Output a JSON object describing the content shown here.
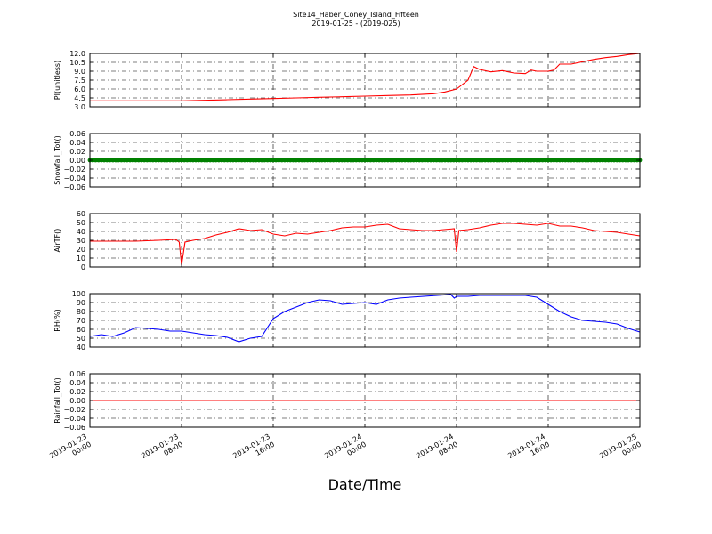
{
  "figure": {
    "title_line1": "Site14_Haber_Coney_Island_Fifteen",
    "title_line2": "2019-01-25 - (2019-025)",
    "xlabel": "Date/Time"
  },
  "chart_data": [
    {
      "type": "line",
      "ylabel": "PI(unitless)",
      "ylim": [
        3.0,
        12.0
      ],
      "yticks": [
        "3.0",
        "4.5",
        "6.0",
        "7.5",
        "9.0",
        "10.5",
        "12.0"
      ],
      "color": "#ff0000",
      "grid": true,
      "x_hours": [
        0,
        2,
        4,
        6,
        8,
        10,
        12,
        14,
        16,
        18,
        20,
        22,
        24,
        26,
        28,
        30,
        31,
        32,
        33,
        33.5,
        34,
        35,
        36,
        37,
        38,
        38.5,
        39,
        40,
        40.5,
        41,
        42,
        43,
        44,
        45,
        46,
        47,
        48
      ],
      "values": [
        4.0,
        4.0,
        4.0,
        4.0,
        4.0,
        4.1,
        4.2,
        4.3,
        4.4,
        4.5,
        4.6,
        4.7,
        4.8,
        4.9,
        5.0,
        5.2,
        5.5,
        6.0,
        7.5,
        9.8,
        9.3,
        8.9,
        9.1,
        8.7,
        8.6,
        9.2,
        9.0,
        9.0,
        9.2,
        10.2,
        10.2,
        10.6,
        11.0,
        11.3,
        11.5,
        11.8,
        12.0
      ]
    },
    {
      "type": "line",
      "ylabel": "Snowfall_Tot()",
      "ylim": [
        -0.06,
        0.06
      ],
      "yticks": [
        "−0.06",
        "−0.04",
        "−0.02",
        "0.00",
        "0.02",
        "0.04",
        "0.06"
      ],
      "color": "#008000",
      "grid": true,
      "marker": "dot",
      "x_hours": [
        0,
        48
      ],
      "values": [
        0.0,
        0.0
      ]
    },
    {
      "type": "line",
      "ylabel": "AirTF()",
      "ylim": [
        0,
        60
      ],
      "yticks": [
        "0",
        "10",
        "20",
        "30",
        "40",
        "50",
        "60"
      ],
      "color": "#ff0000",
      "grid": true,
      "x_hours": [
        0,
        2,
        4,
        6,
        7.5,
        7.8,
        8,
        8.3,
        9,
        10,
        11,
        12,
        13,
        14,
        15,
        16,
        17,
        18,
        19,
        20,
        21,
        22,
        23,
        24,
        25,
        26,
        27,
        28,
        29,
        30,
        31.8,
        32,
        32.2,
        33,
        34,
        35,
        35.5,
        36,
        37,
        38,
        39,
        40,
        41,
        42,
        43,
        44,
        45,
        46,
        47,
        48
      ],
      "values": [
        29,
        29,
        29,
        30,
        31,
        28,
        2,
        28,
        30,
        32,
        36,
        39,
        43,
        41,
        42,
        37,
        35,
        38,
        37,
        39,
        41,
        44,
        45,
        45,
        47,
        48,
        43,
        42,
        41,
        41,
        43,
        17,
        41,
        42,
        44,
        47,
        48,
        49,
        49,
        48,
        47,
        49,
        46,
        46,
        44,
        41,
        40,
        39,
        37,
        35
      ]
    },
    {
      "type": "line",
      "ylabel": "RH(%)",
      "ylim": [
        40,
        100
      ],
      "yticks": [
        "40",
        "50",
        "60",
        "70",
        "80",
        "90",
        "100"
      ],
      "color": "#0000ff",
      "grid": true,
      "x_hours": [
        0,
        1,
        2,
        3,
        4,
        5,
        6,
        7,
        8,
        9,
        10,
        11,
        12,
        13,
        14,
        15,
        16,
        17,
        18,
        19,
        20,
        21,
        22,
        23,
        24,
        25,
        26,
        27,
        28,
        31.5,
        31.8,
        32,
        33,
        34,
        35,
        36,
        37,
        38,
        39,
        40,
        41,
        42,
        43,
        44,
        45,
        46,
        47,
        48
      ],
      "values": [
        52,
        54,
        52,
        56,
        62,
        61,
        60,
        58,
        58,
        56,
        54,
        53,
        51,
        46,
        50,
        52,
        72,
        80,
        85,
        90,
        93,
        92,
        88,
        89,
        90,
        88,
        93,
        95,
        96,
        99,
        95,
        97,
        97,
        98,
        98,
        98,
        98,
        98,
        96,
        88,
        80,
        74,
        70,
        69,
        68,
        66,
        61,
        57
      ]
    },
    {
      "type": "line",
      "ylabel": "Rainfall_Tot()",
      "ylim": [
        -0.06,
        0.06
      ],
      "yticks": [
        "−0.06",
        "−0.04",
        "−0.02",
        "0.00",
        "0.02",
        "0.04",
        "0.06"
      ],
      "color": "#ff0000",
      "grid": true,
      "x_hours": [
        0,
        48
      ],
      "values": [
        0.0,
        0.0
      ]
    }
  ],
  "x_axis": {
    "range_hours": [
      0,
      48
    ],
    "ticks": [
      {
        "hours": 0,
        "line1": "2019-01-23",
        "line2": "00:00"
      },
      {
        "hours": 8,
        "line1": "2019-01-23",
        "line2": "08:00"
      },
      {
        "hours": 16,
        "line1": "2019-01-23",
        "line2": "16:00"
      },
      {
        "hours": 24,
        "line1": "2019-01-24",
        "line2": "00:00"
      },
      {
        "hours": 32,
        "line1": "2019-01-24",
        "line2": "08:00"
      },
      {
        "hours": 40,
        "line1": "2019-01-24",
        "line2": "16:00"
      },
      {
        "hours": 48,
        "line1": "2019-01-25",
        "line2": "00:00"
      }
    ]
  }
}
